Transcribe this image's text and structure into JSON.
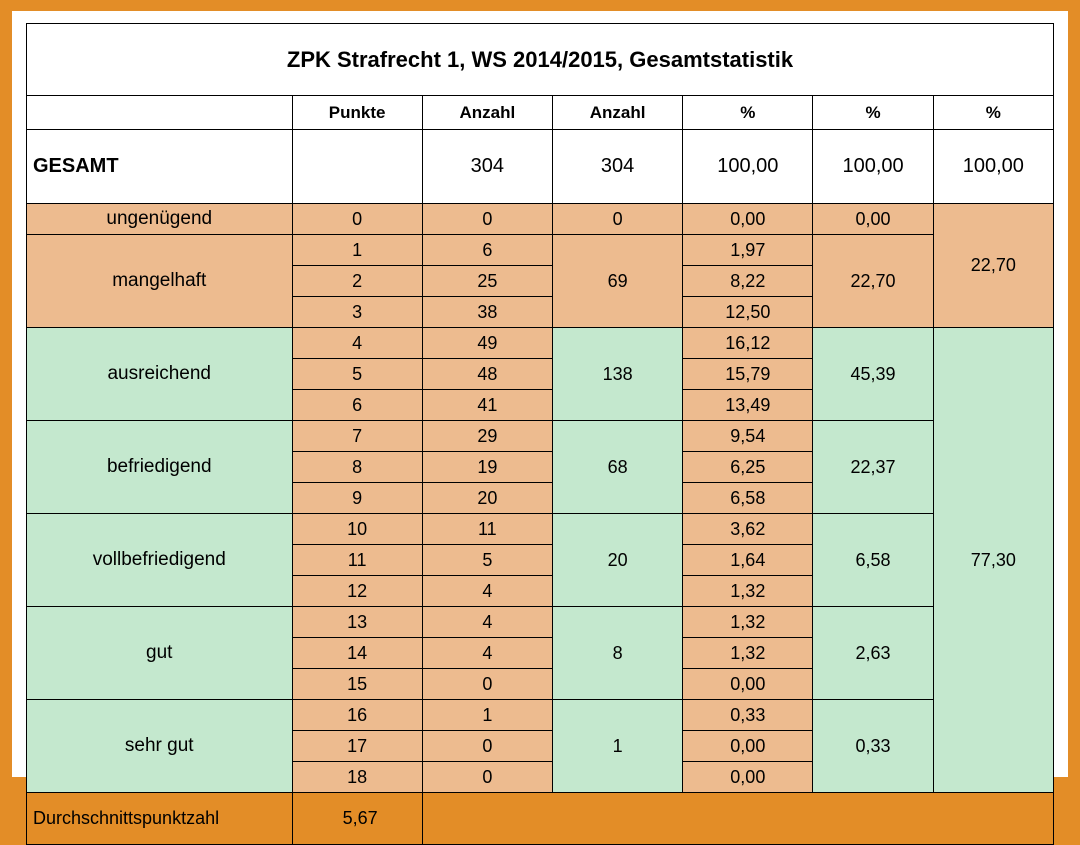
{
  "title": "ZPK Strafrecht 1, WS 2014/2015, Gesamtstatistik",
  "headers": {
    "c1": "",
    "c2": "Punkte",
    "c3": "Anzahl",
    "c4": "Anzahl",
    "c5": "%",
    "c6": "%",
    "c7": "%"
  },
  "gesamt": {
    "label": "GESAMT",
    "punkte": "",
    "anzahl1": "304",
    "anzahl2": "304",
    "pct1": "100,00",
    "pct2": "100,00",
    "pct3": "100,00"
  },
  "colors": {
    "fail_bg": "#edbb8f",
    "pass_bg": "#c4e8ce",
    "page_bg": "#e38d27",
    "border": "#000000"
  },
  "categories": [
    {
      "label": "ungenügend",
      "group": "fail",
      "rows": [
        {
          "punkte": "0",
          "anzahl": "0",
          "pct": "0,00"
        }
      ],
      "anzahl_sum": "0",
      "pct_sum": "0,00"
    },
    {
      "label": "mangelhaft",
      "group": "fail",
      "rows": [
        {
          "punkte": "1",
          "anzahl": "6",
          "pct": "1,97"
        },
        {
          "punkte": "2",
          "anzahl": "25",
          "pct": "8,22"
        },
        {
          "punkte": "3",
          "anzahl": "38",
          "pct": "12,50"
        }
      ],
      "anzahl_sum": "69",
      "pct_sum": "22,70"
    },
    {
      "label": "ausreichend",
      "group": "pass",
      "rows": [
        {
          "punkte": "4",
          "anzahl": "49",
          "pct": "16,12"
        },
        {
          "punkte": "5",
          "anzahl": "48",
          "pct": "15,79"
        },
        {
          "punkte": "6",
          "anzahl": "41",
          "pct": "13,49"
        }
      ],
      "anzahl_sum": "138",
      "pct_sum": "45,39"
    },
    {
      "label": "befriedigend",
      "group": "pass",
      "rows": [
        {
          "punkte": "7",
          "anzahl": "29",
          "pct": "9,54"
        },
        {
          "punkte": "8",
          "anzahl": "19",
          "pct": "6,25"
        },
        {
          "punkte": "9",
          "anzahl": "20",
          "pct": "6,58"
        }
      ],
      "anzahl_sum": "68",
      "pct_sum": "22,37"
    },
    {
      "label": "vollbefriedigend",
      "group": "pass",
      "rows": [
        {
          "punkte": "10",
          "anzahl": "11",
          "pct": "3,62"
        },
        {
          "punkte": "11",
          "anzahl": "5",
          "pct": "1,64"
        },
        {
          "punkte": "12",
          "anzahl": "4",
          "pct": "1,32"
        }
      ],
      "anzahl_sum": "20",
      "pct_sum": "6,58"
    },
    {
      "label": "gut",
      "group": "pass",
      "rows": [
        {
          "punkte": "13",
          "anzahl": "4",
          "pct": "1,32"
        },
        {
          "punkte": "14",
          "anzahl": "4",
          "pct": "1,32"
        },
        {
          "punkte": "15",
          "anzahl": "0",
          "pct": "0,00"
        }
      ],
      "anzahl_sum": "8",
      "pct_sum": "2,63"
    },
    {
      "label": "sehr gut",
      "group": "pass",
      "rows": [
        {
          "punkte": "16",
          "anzahl": "1",
          "pct": "0,33"
        },
        {
          "punkte": "17",
          "anzahl": "0",
          "pct": "0,00"
        },
        {
          "punkte": "18",
          "anzahl": "0",
          "pct": "0,00"
        }
      ],
      "anzahl_sum": "1",
      "pct_sum": "0,33"
    }
  ],
  "group_totals": {
    "fail": "22,70",
    "pass": "77,30"
  },
  "average": {
    "label": "Durchschnittspunktzahl",
    "value": "5,67"
  }
}
